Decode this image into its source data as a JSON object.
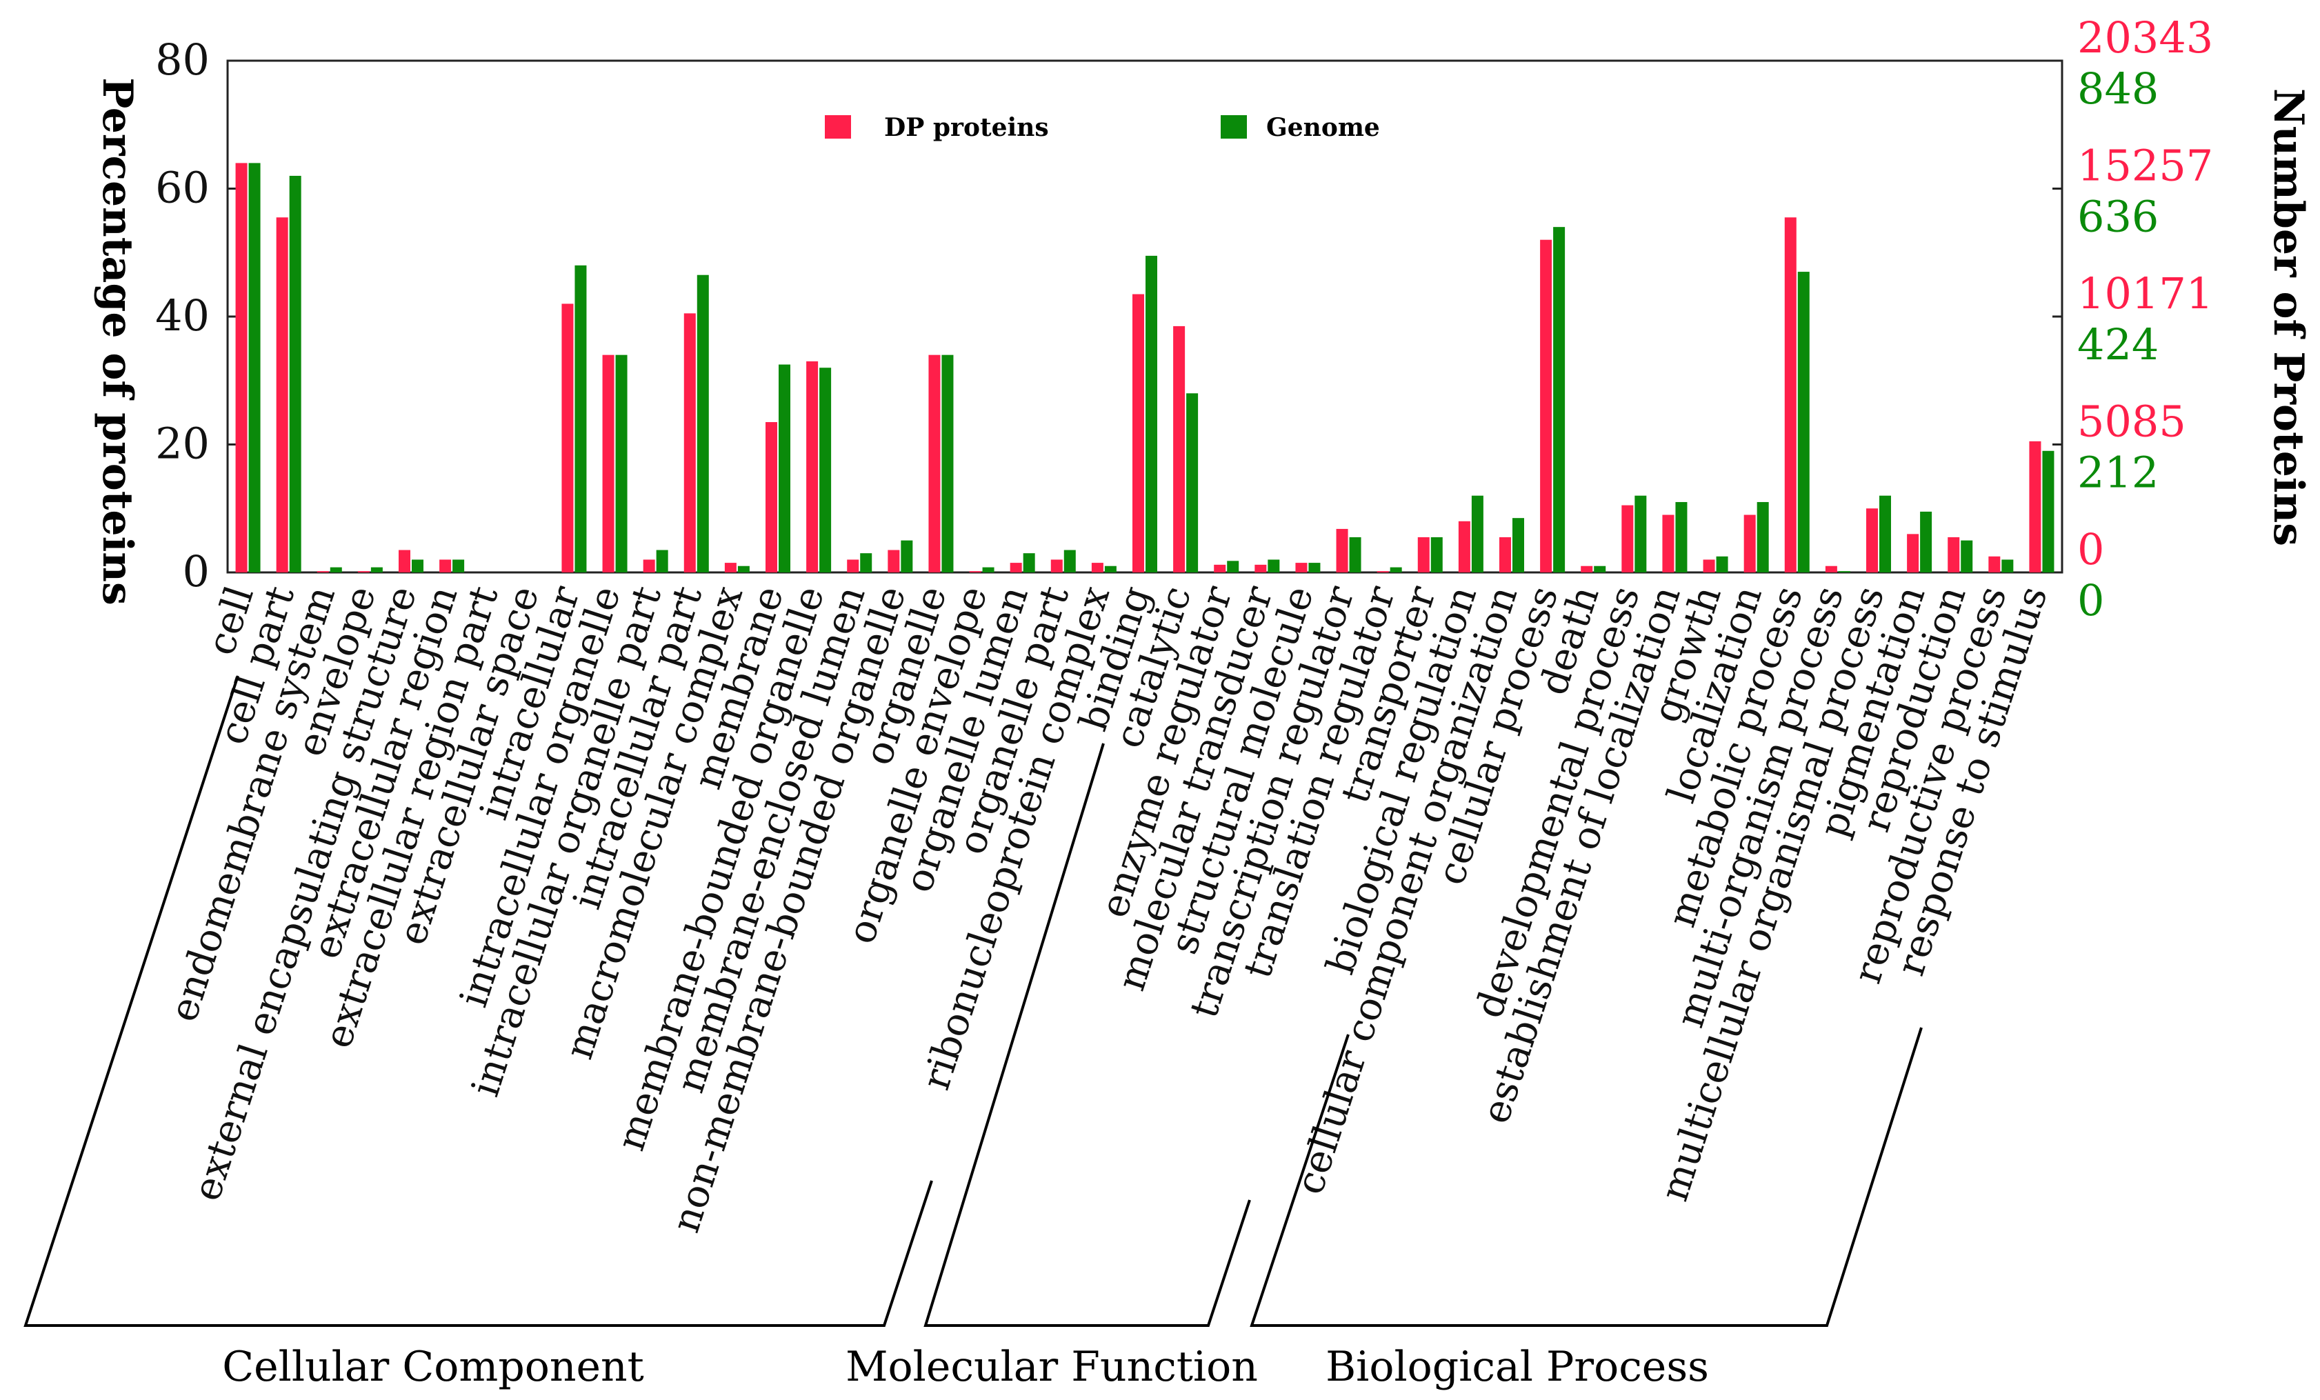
{
  "chart_data": {
    "type": "bar",
    "ylabel_left": "Percentage of proteins",
    "ylabel_right": "Number of Proteins",
    "ylim": [
      0,
      80
    ],
    "left_ticks": [
      "0",
      "20",
      "40",
      "60",
      "80"
    ],
    "right_ticks_dp": [
      "0",
      "5085",
      "10171",
      "15257",
      "20343"
    ],
    "right_ticks_genome": [
      "0",
      "212",
      "424",
      "636",
      "848"
    ],
    "legend": [
      {
        "name": "DP proteins",
        "color": "#ff1f4a"
      },
      {
        "name": "Genome",
        "color": "#0a8a0a"
      }
    ],
    "categories": [
      "cell",
      "cell part",
      "endomembrane system",
      "envelope",
      "external encapsulating structure",
      "extracellular region",
      "extracellular region part",
      "extracellular space",
      "intracellular",
      "intracellular organelle",
      "intracellular organelle part",
      "intracellular part",
      "macromolecular complex",
      "membrane",
      "membrane-bounded organelle",
      "membrane-enclosed lumen",
      "non-membrane-bounded organelle",
      "organelle",
      "organelle envelope",
      "organelle lumen",
      "organelle part",
      "ribonucleoprotein complex",
      "binding",
      "catalytic",
      "enzyme regulator",
      "molecular transducer",
      "structural molecule",
      "transcription regulator",
      "translation regulator",
      "transporter",
      "biological regulation",
      "cellular component organization",
      "cellular process",
      "death",
      "developmental process",
      "establishment of localization",
      "growth",
      "localization",
      "metabolic process",
      "multi-organism process",
      "multicellular organismal process",
      "pigmentation",
      "reproduction",
      "reproductive process",
      "response to stimulus"
    ],
    "series": [
      {
        "name": "DP proteins",
        "values": [
          64,
          55.5,
          0.2,
          0.2,
          3.5,
          2,
          0,
          0,
          42,
          34,
          2,
          40.5,
          1.5,
          23.5,
          33,
          2,
          3.5,
          34,
          0.2,
          1.5,
          2,
          1.5,
          43.5,
          38.5,
          1.2,
          1.2,
          1.5,
          6.8,
          0.2,
          5.5,
          8,
          5.5,
          52,
          1,
          10.5,
          9,
          2,
          9,
          55.5,
          1,
          10,
          6,
          5.5,
          2.5,
          20.5
        ]
      },
      {
        "name": "Genome",
        "values": [
          64,
          62,
          0.8,
          0.8,
          2,
          2,
          0,
          0,
          48,
          34,
          3.5,
          46.5,
          1,
          32.5,
          32,
          3,
          5,
          34,
          0.8,
          3,
          3.5,
          1,
          49.5,
          28,
          1.8,
          2,
          1.5,
          5.5,
          0.8,
          5.5,
          12,
          8.5,
          54,
          1,
          12,
          11,
          2.5,
          11,
          47,
          0.2,
          12,
          9.5,
          5,
          2,
          19
        ]
      }
    ],
    "groups": [
      "Cellular Component",
      "Molecular Function",
      "Biological Process"
    ]
  }
}
